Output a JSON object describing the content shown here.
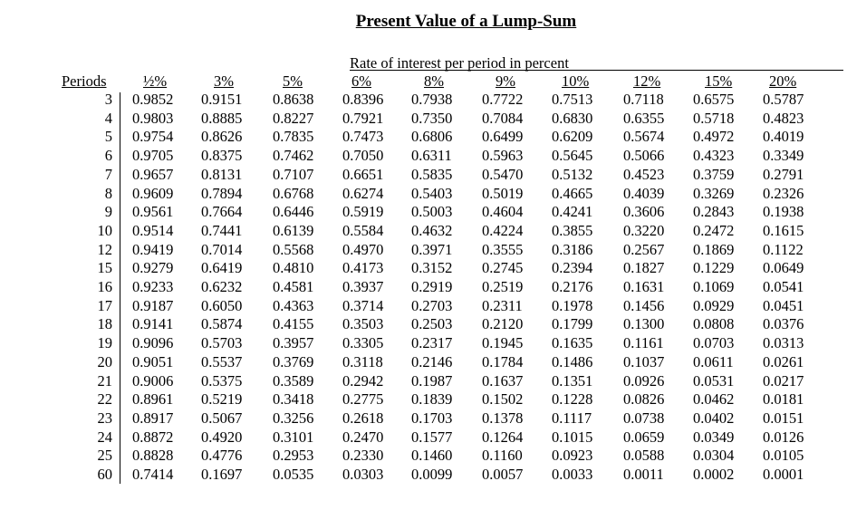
{
  "title": "Present Value of a Lump-Sum",
  "subtitle": "Rate of interest per period in percent",
  "periods_label": "Periods",
  "rates": [
    "½%",
    "3%",
    "5%",
    "6%",
    "8%",
    "9%",
    "10%",
    "12%",
    "15%",
    "20%"
  ],
  "rows": [
    {
      "period": "3",
      "values": [
        "0.9852",
        "0.9151",
        "0.8638",
        "0.8396",
        "0.7938",
        "0.7722",
        "0.7513",
        "0.7118",
        "0.6575",
        "0.5787"
      ]
    },
    {
      "period": "4",
      "values": [
        "0.9803",
        "0.8885",
        "0.8227",
        "0.7921",
        "0.7350",
        "0.7084",
        "0.6830",
        "0.6355",
        "0.5718",
        "0.4823"
      ]
    },
    {
      "period": "5",
      "values": [
        "0.9754",
        "0.8626",
        "0.7835",
        "0.7473",
        "0.6806",
        "0.6499",
        "0.6209",
        "0.5674",
        "0.4972",
        "0.4019"
      ]
    },
    {
      "period": "6",
      "values": [
        "0.9705",
        "0.8375",
        "0.7462",
        "0.7050",
        "0.6311",
        "0.5963",
        "0.5645",
        "0.5066",
        "0.4323",
        "0.3349"
      ]
    },
    {
      "period": "7",
      "values": [
        "0.9657",
        "0.8131",
        "0.7107",
        "0.6651",
        "0.5835",
        "0.5470",
        "0.5132",
        "0.4523",
        "0.3759",
        "0.2791"
      ]
    },
    {
      "period": "8",
      "values": [
        "0.9609",
        "0.7894",
        "0.6768",
        "0.6274",
        "0.5403",
        "0.5019",
        "0.4665",
        "0.4039",
        "0.3269",
        "0.2326"
      ]
    },
    {
      "period": "9",
      "values": [
        "0.9561",
        "0.7664",
        "0.6446",
        "0.5919",
        "0.5003",
        "0.4604",
        "0.4241",
        "0.3606",
        "0.2843",
        "0.1938"
      ]
    },
    {
      "period": "10",
      "values": [
        "0.9514",
        "0.7441",
        "0.6139",
        "0.5584",
        "0.4632",
        "0.4224",
        "0.3855",
        "0.3220",
        "0.2472",
        "0.1615"
      ]
    },
    {
      "period": "12",
      "values": [
        "0.9419",
        "0.7014",
        "0.5568",
        "0.4970",
        "0.3971",
        "0.3555",
        "0.3186",
        "0.2567",
        "0.1869",
        "0.1122"
      ]
    },
    {
      "period": "15",
      "values": [
        "0.9279",
        "0.6419",
        "0.4810",
        "0.4173",
        "0.3152",
        "0.2745",
        "0.2394",
        "0.1827",
        "0.1229",
        "0.0649"
      ]
    },
    {
      "period": "16",
      "values": [
        "0.9233",
        "0.6232",
        "0.4581",
        "0.3937",
        "0.2919",
        "0.2519",
        "0.2176",
        "0.1631",
        "0.1069",
        "0.0541"
      ]
    },
    {
      "period": "17",
      "values": [
        "0.9187",
        "0.6050",
        "0.4363",
        "0.3714",
        "0.2703",
        "0.2311",
        "0.1978",
        "0.1456",
        "0.0929",
        "0.0451"
      ]
    },
    {
      "period": "18",
      "values": [
        "0.9141",
        "0.5874",
        "0.4155",
        "0.3503",
        "0.2503",
        "0.2120",
        "0.1799",
        "0.1300",
        "0.0808",
        "0.0376"
      ]
    },
    {
      "period": "19",
      "values": [
        "0.9096",
        "0.5703",
        "0.3957",
        "0.3305",
        "0.2317",
        "0.1945",
        "0.1635",
        "0.1161",
        "0.0703",
        "0.0313"
      ]
    },
    {
      "period": "20",
      "values": [
        "0.9051",
        "0.5537",
        "0.3769",
        "0.3118",
        "0.2146",
        "0.1784",
        "0.1486",
        "0.1037",
        "0.0611",
        "0.0261"
      ]
    },
    {
      "period": "21",
      "values": [
        "0.9006",
        "0.5375",
        "0.3589",
        "0.2942",
        "0.1987",
        "0.1637",
        "0.1351",
        "0.0926",
        "0.0531",
        "0.0217"
      ]
    },
    {
      "period": "22",
      "values": [
        "0.8961",
        "0.5219",
        "0.3418",
        "0.2775",
        "0.1839",
        "0.1502",
        "0.1228",
        "0.0826",
        "0.0462",
        "0.0181"
      ]
    },
    {
      "period": "23",
      "values": [
        "0.8917",
        "0.5067",
        "0.3256",
        "0.2618",
        "0.1703",
        "0.1378",
        "0.1117",
        "0.0738",
        "0.0402",
        "0.0151"
      ]
    },
    {
      "period": "24",
      "values": [
        "0.8872",
        "0.4920",
        "0.3101",
        "0.2470",
        "0.1577",
        "0.1264",
        "0.1015",
        "0.0659",
        "0.0349",
        "0.0126"
      ]
    },
    {
      "period": "25",
      "values": [
        "0.8828",
        "0.4776",
        "0.2953",
        "0.2330",
        "0.1460",
        "0.1160",
        "0.0923",
        "0.0588",
        "0.0304",
        "0.0105"
      ]
    },
    {
      "period": "60",
      "values": [
        "0.7414",
        "0.1697",
        "0.0535",
        "0.0303",
        "0.0099",
        "0.0057",
        "0.0033",
        "0.0011",
        "0.0002",
        "0.0001"
      ]
    }
  ]
}
